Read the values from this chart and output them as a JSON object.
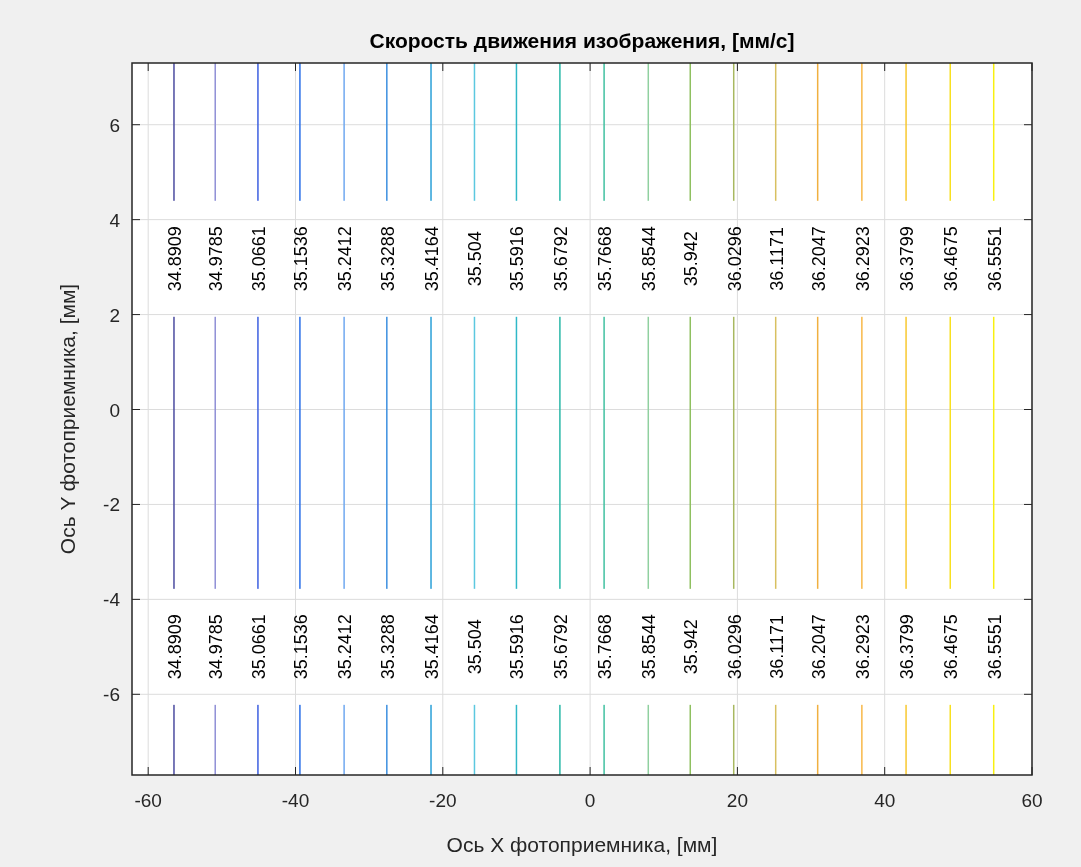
{
  "chart_data": {
    "type": "line",
    "title": "Скорость движения изображения, [мм/с]",
    "xlabel": "Ось X фотоприемника, [мм]",
    "ylabel": "Ось Y фотоприемника, [мм]",
    "xlim": [
      -62.2,
      60
    ],
    "xticks": [
      -60,
      -40,
      -20,
      0,
      20,
      40,
      60
    ],
    "ylim": [
      -7.7,
      7.3
    ],
    "yticks": [
      -6,
      -4,
      -2,
      0,
      2,
      4,
      6
    ],
    "grid": true,
    "series": [
      {
        "name": "34.8909",
        "color": "#4b4ba0",
        "x": [
          -56.5,
          -56.5
        ],
        "values": [
          -7.7,
          7.3
        ]
      },
      {
        "name": "34.9785",
        "color": "#8f8fd6",
        "x": [
          -50.9,
          -50.9
        ],
        "values": [
          -7.7,
          7.3
        ]
      },
      {
        "name": "35.0661",
        "color": "#3d5fe0",
        "x": [
          -45.1,
          -45.1
        ],
        "values": [
          -7.7,
          7.3
        ]
      },
      {
        "name": "35.1536",
        "color": "#2a6fe8",
        "x": [
          -39.4,
          -39.4
        ],
        "values": [
          -7.7,
          7.3
        ]
      },
      {
        "name": "35.2412",
        "color": "#6fa8f0",
        "x": [
          -33.4,
          -33.4
        ],
        "values": [
          -7.7,
          7.3
        ]
      },
      {
        "name": "35.3288",
        "color": "#3c8fe0",
        "x": [
          -27.6,
          -27.6
        ],
        "values": [
          -7.7,
          7.3
        ]
      },
      {
        "name": "35.4164",
        "color": "#2aa0d8",
        "x": [
          -21.6,
          -21.6
        ],
        "values": [
          -7.7,
          7.3
        ]
      },
      {
        "name": "35.504",
        "color": "#5cc8e0",
        "x": [
          -15.7,
          -15.7
        ],
        "values": [
          -7.7,
          7.3
        ]
      },
      {
        "name": "35.5916",
        "color": "#30b8c8",
        "x": [
          -10.0,
          -10.0
        ],
        "values": [
          -7.7,
          7.3
        ]
      },
      {
        "name": "35.6792",
        "color": "#2ab8a8",
        "x": [
          -4.1,
          -4.1
        ],
        "values": [
          -7.7,
          7.3
        ]
      },
      {
        "name": "35.7668",
        "color": "#40c0a0",
        "x": [
          1.9,
          1.9
        ],
        "values": [
          -7.7,
          7.3
        ]
      },
      {
        "name": "35.8544",
        "color": "#90d0a0",
        "x": [
          7.9,
          7.9
        ],
        "values": [
          -7.7,
          7.3
        ]
      },
      {
        "name": "35.942",
        "color": "#8fc060",
        "x": [
          13.6,
          13.6
        ],
        "values": [
          -7.7,
          7.3
        ]
      },
      {
        "name": "36.0296",
        "color": "#a8b860",
        "x": [
          19.5,
          19.5
        ],
        "values": [
          -7.7,
          7.3
        ]
      },
      {
        "name": "36.1171",
        "color": "#d8c060",
        "x": [
          25.2,
          25.2
        ],
        "values": [
          -7.7,
          7.3
        ]
      },
      {
        "name": "36.2047",
        "color": "#f0b040",
        "x": [
          30.9,
          30.9
        ],
        "values": [
          -7.7,
          7.3
        ]
      },
      {
        "name": "36.2923",
        "color": "#f8b848",
        "x": [
          36.9,
          36.9
        ],
        "values": [
          -7.7,
          7.3
        ]
      },
      {
        "name": "36.3799",
        "color": "#f8c830",
        "x": [
          42.9,
          42.9
        ],
        "values": [
          -7.7,
          7.3
        ]
      },
      {
        "name": "36.4675",
        "color": "#f8e020",
        "x": [
          48.9,
          48.9
        ],
        "values": [
          -7.7,
          7.3
        ]
      },
      {
        "name": "36.5551",
        "color": "#f8f010",
        "x": [
          54.8,
          54.8
        ],
        "values": [
          -7.7,
          7.3
        ]
      }
    ]
  }
}
